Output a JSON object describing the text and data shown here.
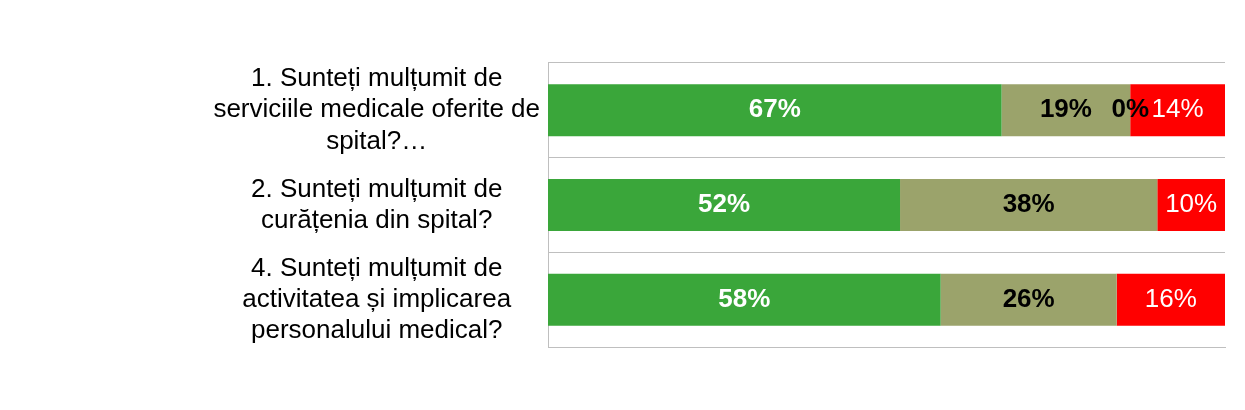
{
  "chart_data": {
    "type": "bar",
    "orientation": "horizontal",
    "stacked": true,
    "categories": [
      "1. Sunteți mulțumit de serviciile medicale oferite de spital?…",
      "2. Sunteți mulțumit de curățenia din spital?",
      "4. Sunteți mulțumit de activitatea și implicarea personalului medical?"
    ],
    "xlim": [
      0,
      100
    ],
    "tick_labels": "y",
    "grid": "y",
    "legend": false,
    "series": [
      {
        "color": "#3aa63a",
        "values": [
          67,
          52,
          58
        ],
        "value_labels": [
          "67%",
          "52%",
          "58%"
        ]
      },
      {
        "color": "#9ba36b",
        "values": [
          19,
          38,
          26
        ],
        "value_labels": [
          "19%",
          "38%",
          "26%"
        ]
      },
      {
        "color": "#ffc000",
        "values": [
          0,
          0,
          0
        ],
        "value_labels": [
          "0%",
          null,
          null
        ]
      },
      {
        "color": "#ff0000",
        "values": [
          14,
          10,
          16
        ],
        "value_labels": [
          "14%",
          "10%",
          "16%"
        ]
      }
    ]
  }
}
